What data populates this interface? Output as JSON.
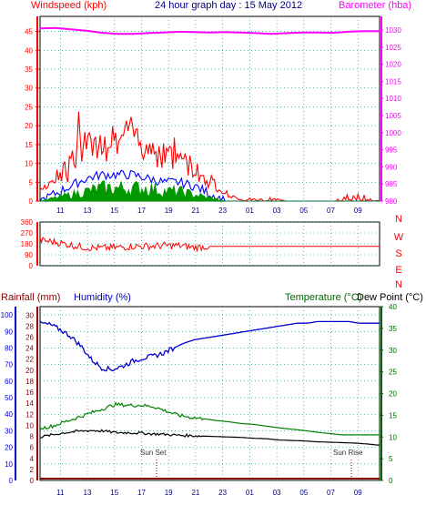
{
  "chart_data": [
    {
      "type": "line",
      "title": "24 hour graph day : 15 May 2012",
      "left_axis_label": "Windspeed (kph)",
      "right_axis_label": "Barometer (hba)",
      "x_ticks": [
        "11",
        "13",
        "15",
        "17",
        "19",
        "21",
        "23",
        "01",
        "03",
        "05",
        "07",
        "09"
      ],
      "left_ticks": [
        0,
        5,
        10,
        15,
        20,
        25,
        30,
        35,
        40,
        45
      ],
      "right_ticks": [
        980,
        985,
        990,
        995,
        1000,
        1005,
        1010,
        1015,
        1020,
        1025,
        1030
      ],
      "left_ylim": [
        0,
        49
      ],
      "right_ylim": [
        980,
        1034
      ],
      "grid": true,
      "series": [
        {
          "values": [
            1030.5,
            1030.6,
            1030.2,
            1029.8,
            1029.2,
            1028.9,
            1028.9,
            1029.1,
            1029.3,
            1029.5,
            1029.4,
            1029.3,
            1029.4,
            1029.3,
            1029.1,
            1028.9,
            1029.1,
            1029.3,
            1029.3,
            1029.2,
            1029.5,
            1029.7,
            1029.7
          ]
        },
        {
          "values": [
            2,
            4,
            8,
            13,
            14,
            15,
            16,
            13,
            12,
            11,
            8,
            5,
            2,
            0,
            0,
            0,
            0,
            0,
            0,
            0,
            0,
            0,
            0
          ],
          "peak_values": [
            10,
            15,
            20,
            24,
            23,
            21,
            22,
            19,
            17,
            15,
            10,
            6,
            3,
            1,
            1,
            1,
            0,
            0,
            0,
            0,
            2,
            2,
            0
          ]
        },
        {
          "values": [
            0,
            2,
            4,
            6,
            7,
            7,
            7,
            6,
            5,
            5,
            4,
            2,
            0,
            0,
            0,
            0,
            0,
            0,
            0,
            0,
            0,
            0,
            0
          ]
        },
        {
          "values": [
            0,
            1,
            2,
            3,
            4,
            4,
            4,
            4,
            3,
            3,
            2,
            1,
            0,
            0,
            0,
            0,
            0,
            0,
            0,
            0,
            0,
            0,
            0
          ]
        }
      ]
    },
    {
      "type": "line",
      "left_ticks": [
        0,
        90,
        180,
        270,
        360
      ],
      "right_labels": [
        "N",
        "W",
        "S",
        "E",
        "N"
      ],
      "ylim": [
        0,
        360
      ],
      "grid": true,
      "series": [
        {
          "values": [
            210,
            195,
            170,
            150,
            145,
            150,
            160,
            160,
            165,
            165,
            150,
            160,
            160,
            160,
            160,
            160,
            160,
            160,
            160,
            160,
            160,
            160,
            160
          ]
        }
      ]
    },
    {
      "type": "line",
      "left_axis_label": "Rainfall (mm)",
      "left_axis_label2": "Humidity (%)",
      "right_axis_label": "Temperature (°C)",
      "right_axis_label2": "Dew Point (°C)",
      "x_ticks": [
        "11",
        "13",
        "15",
        "17",
        "19",
        "21",
        "23",
        "01",
        "03",
        "05",
        "07",
        "09"
      ],
      "humidity_ticks": [
        0,
        10,
        20,
        30,
        40,
        50,
        60,
        70,
        80,
        90,
        100
      ],
      "rain_ticks": [
        0,
        2,
        4,
        6,
        8,
        10,
        12,
        14,
        16,
        18,
        20,
        22,
        24,
        26,
        28,
        30
      ],
      "temp_ticks": [
        0,
        5,
        10,
        15,
        20,
        25,
        30,
        35,
        40
      ],
      "ylim_humidity": [
        0,
        105
      ],
      "ylim_temp": [
        0,
        40
      ],
      "annotations": [
        {
          "text": "Sun Set"
        },
        {
          "text": "Sun Rise"
        }
      ],
      "series": [
        {
          "values": [
            95,
            94,
            91,
            87,
            81,
            73,
            68,
            67,
            69,
            72,
            74,
            75,
            77,
            80,
            83,
            85,
            86,
            87,
            88,
            89,
            90,
            91,
            92,
            93,
            94,
            95,
            95,
            96,
            96,
            96,
            96,
            95,
            95,
            95
          ]
        },
        {
          "values": [
            12,
            12.5,
            13.5,
            14.5,
            15.5,
            16.5,
            17.5,
            17.3,
            17.3,
            17,
            16,
            15,
            14.5,
            14.2,
            13.8,
            13.5,
            13.1,
            12.9,
            12.5,
            12.1,
            11.8,
            11.5,
            11.1,
            10.8,
            10.5,
            10.5,
            10.5,
            10.5
          ]
        },
        {
          "values": [
            10,
            10.5,
            11,
            11.3,
            11.5,
            11.4,
            11,
            11,
            10.9,
            10.7,
            10.6,
            10.4,
            10.3,
            10.2,
            10.1,
            10,
            9.9,
            9.7,
            9.6,
            9.3,
            9.2,
            9.1,
            8.9,
            8.8,
            8.7,
            8.6,
            8.4,
            8.1
          ]
        },
        {
          "values": [
            0,
            0,
            0,
            0,
            0,
            0,
            0,
            0,
            0,
            0,
            0,
            0,
            0,
            0,
            0,
            0,
            0,
            0,
            0,
            0,
            0,
            0,
            0,
            0,
            0,
            0,
            0,
            0
          ]
        }
      ]
    }
  ]
}
